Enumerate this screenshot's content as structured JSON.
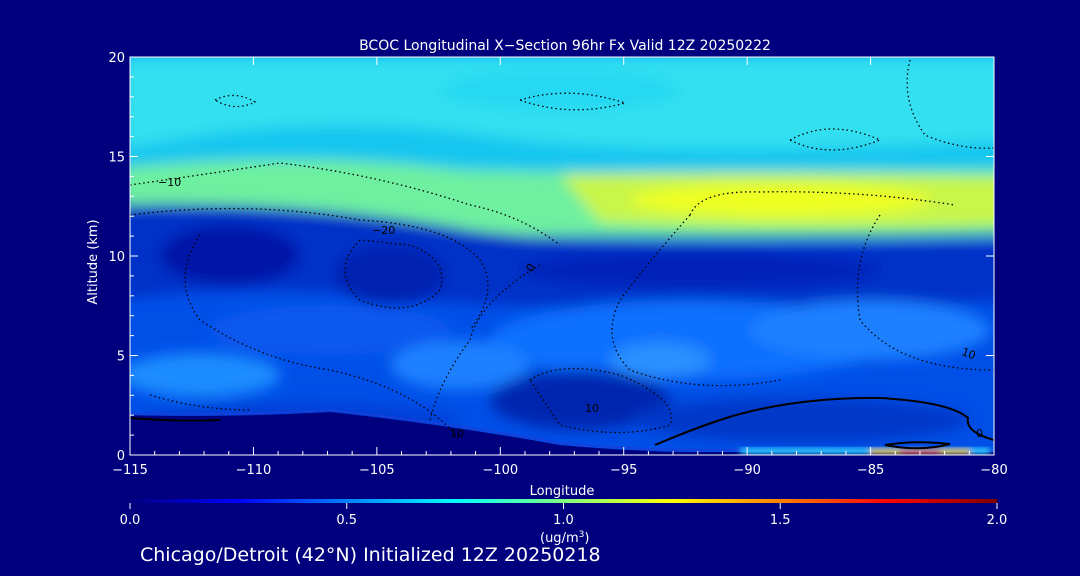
{
  "chart_data": {
    "type": "heatmap",
    "title": "BCOC Longitudinal X−Section 96hr  Fx Valid 12Z 20250222",
    "xlabel": "Longitude",
    "ylabel": "Altitude (km)",
    "xlim": [
      -115,
      -80
    ],
    "ylim": [
      0,
      20
    ],
    "x_ticks": [
      -115,
      -110,
      -105,
      -100,
      -95,
      -90,
      -85,
      -80
    ],
    "x_tick_labels": [
      "−115",
      "−110",
      "−105",
      "−100",
      "−95",
      "−90",
      "−85",
      "−80"
    ],
    "y_ticks": [
      0,
      5,
      10,
      15,
      20
    ],
    "y_tick_labels": [
      "0",
      "5",
      "10",
      "15",
      "20"
    ],
    "colorbar": {
      "min": 0.0,
      "max": 2.0,
      "ticks": [
        0.0,
        0.5,
        1.0,
        1.5,
        2.0
      ],
      "tick_labels": [
        "0.0",
        "0.5",
        "1.0",
        "1.5",
        "2.0"
      ],
      "units_label": "(ug/m",
      "units_sup": "3",
      "units_close": ")",
      "colormap": [
        "#00007f",
        "#0000ff",
        "#0080ff",
        "#00ffff",
        "#80ff80",
        "#ffff00",
        "#ff8000",
        "#ff0000",
        "#7f0000"
      ]
    },
    "concentration_bands": [
      {
        "alt_range": [
          0,
          2
        ],
        "value": 0.2
      },
      {
        "alt_range": [
          2,
          6
        ],
        "value": 0.4
      },
      {
        "alt_range": [
          6,
          11
        ],
        "value": 0.3
      },
      {
        "alt_range": [
          11,
          14
        ],
        "value": 1.0
      },
      {
        "alt_range": [
          14,
          20
        ],
        "value": 0.8
      }
    ],
    "surface_max": {
      "lon": -84,
      "alt": 0.1,
      "value": 1.8
    },
    "contour_labels": [
      "−10",
      "−20",
      "0",
      "10",
      "10",
      "10",
      "0"
    ],
    "subtitle": "Chicago/Detroit (42°N) Initialized 12Z 20250218"
  }
}
